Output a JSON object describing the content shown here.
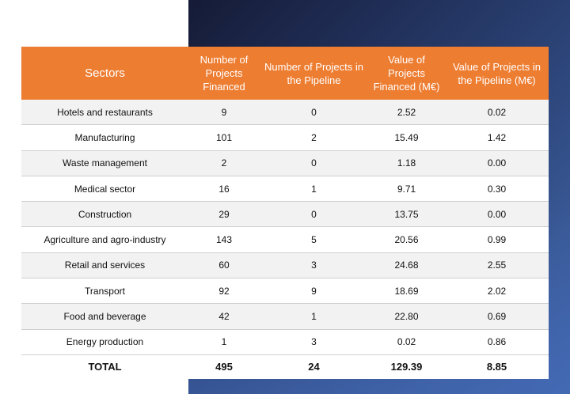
{
  "table": {
    "headers": [
      "Sectors",
      "Number of Projects Financed",
      "Number of Projects in the Pipeline",
      "Value of Projects Financed (M€)",
      "Value of Projects in the Pipeline (M€)"
    ],
    "rows": [
      [
        "Hotels and restaurants",
        "9",
        "0",
        "2.52",
        "0.02"
      ],
      [
        "Manufacturing",
        "101",
        "2",
        "15.49",
        "1.42"
      ],
      [
        "Waste management",
        "2",
        "0",
        "1.18",
        "0.00"
      ],
      [
        "Medical sector",
        "16",
        "1",
        "9.71",
        "0.30"
      ],
      [
        "Construction",
        "29",
        "0",
        "13.75",
        "0.00"
      ],
      [
        "Agriculture and agro-industry",
        "143",
        "5",
        "20.56",
        "0.99"
      ],
      [
        "Retail and services",
        "60",
        "3",
        "24.68",
        "2.55"
      ],
      [
        "Transport",
        "92",
        "9",
        "18.69",
        "2.02"
      ],
      [
        "Food and beverage",
        "42",
        "1",
        "22.80",
        "0.69"
      ],
      [
        "Energy production",
        "1",
        "3",
        "0.02",
        "0.86"
      ]
    ],
    "total": [
      "TOTAL",
      "495",
      "24",
      "129.39",
      "8.85"
    ]
  },
  "colors": {
    "header_bg": "#ed7d31",
    "header_text": "#ffffff",
    "row_alt": "#f2f2f2",
    "panel_dark": "#1f2d55",
    "panel_light": "#4266ad"
  }
}
